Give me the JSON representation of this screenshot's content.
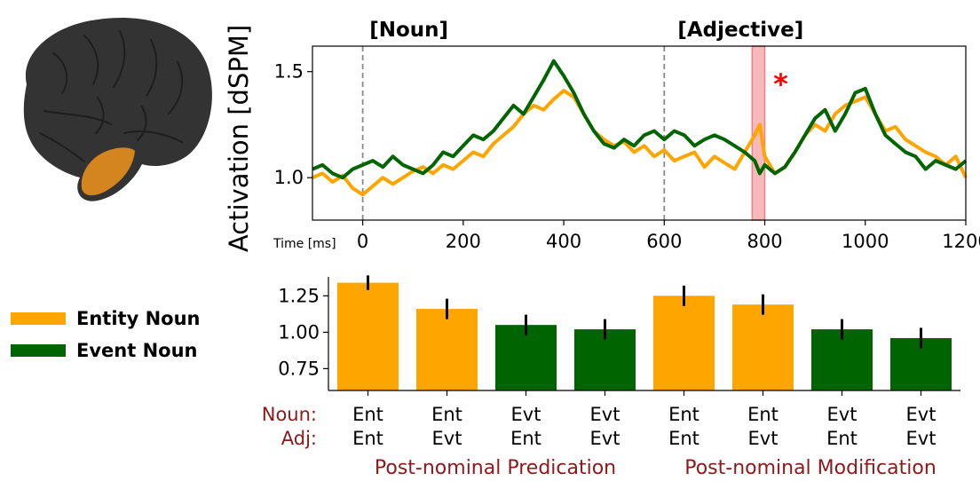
{
  "colors": {
    "entity": "#FFA500",
    "event": "#006400",
    "brain": "#333333",
    "region": "#D4851F",
    "highlight": "#F08080",
    "star": "#FF0000",
    "condition_text": "#8B1A1A"
  },
  "legend": [
    {
      "label": "Entity Noun",
      "color_key": "entity"
    },
    {
      "label": "Event Noun",
      "color_key": "event"
    }
  ],
  "brain_icon": "left-hemisphere-brain-with-temporal-region-highlighted",
  "chart_data": [
    {
      "type": "line",
      "ylabel": "Activation [dSPM]",
      "xlabel": "Time [ms]",
      "xlim": [
        -100,
        1200
      ],
      "ylim": [
        0.8,
        1.62
      ],
      "xticks": [
        0,
        200,
        400,
        600,
        800,
        1000,
        1200
      ],
      "yticks": [
        1.0,
        1.5
      ],
      "ytick_labels": [
        "1.0",
        "1.5"
      ],
      "grid": false,
      "onset_markers": [
        {
          "x": 0,
          "label": "[Noun]"
        },
        {
          "x": 600,
          "label": "[Adjective]"
        }
      ],
      "significant_window": {
        "x0": 775,
        "x1": 800,
        "marker": "*"
      },
      "series": [
        {
          "name": "Entity Noun",
          "color_key": "entity",
          "x": [
            -100,
            -80,
            -60,
            -40,
            -20,
            0,
            20,
            40,
            60,
            80,
            100,
            120,
            140,
            160,
            180,
            200,
            220,
            240,
            260,
            280,
            300,
            320,
            340,
            360,
            380,
            400,
            420,
            440,
            460,
            480,
            500,
            520,
            540,
            560,
            580,
            600,
            620,
            640,
            660,
            680,
            700,
            720,
            740,
            760,
            780,
            790,
            800,
            820,
            840,
            860,
            880,
            900,
            920,
            940,
            960,
            980,
            1000,
            1020,
            1040,
            1060,
            1080,
            1100,
            1120,
            1140,
            1160,
            1180,
            1200
          ],
          "y": [
            1.0,
            1.02,
            0.98,
            1.01,
            0.95,
            0.92,
            0.96,
            1.0,
            0.97,
            1.0,
            1.03,
            1.05,
            1.02,
            1.06,
            1.04,
            1.08,
            1.12,
            1.1,
            1.16,
            1.2,
            1.24,
            1.3,
            1.34,
            1.32,
            1.37,
            1.41,
            1.38,
            1.3,
            1.22,
            1.18,
            1.15,
            1.17,
            1.12,
            1.15,
            1.1,
            1.13,
            1.08,
            1.1,
            1.12,
            1.05,
            1.1,
            1.07,
            1.04,
            1.12,
            1.2,
            1.25,
            1.1,
            1.02,
            1.05,
            1.12,
            1.2,
            1.25,
            1.22,
            1.3,
            1.34,
            1.36,
            1.38,
            1.3,
            1.22,
            1.24,
            1.18,
            1.15,
            1.12,
            1.1,
            1.06,
            1.1,
            1.0
          ]
        },
        {
          "name": "Event Noun",
          "color_key": "event",
          "x": [
            -100,
            -80,
            -60,
            -40,
            -20,
            0,
            20,
            40,
            60,
            80,
            100,
            120,
            140,
            160,
            180,
            200,
            220,
            240,
            260,
            280,
            300,
            320,
            340,
            360,
            380,
            400,
            420,
            440,
            460,
            480,
            500,
            520,
            540,
            560,
            580,
            600,
            620,
            640,
            660,
            680,
            700,
            720,
            740,
            760,
            780,
            790,
            800,
            820,
            840,
            860,
            880,
            900,
            920,
            940,
            960,
            980,
            1000,
            1020,
            1040,
            1060,
            1080,
            1100,
            1120,
            1140,
            1160,
            1180,
            1200
          ],
          "y": [
            1.04,
            1.06,
            1.02,
            1.0,
            1.04,
            1.06,
            1.08,
            1.05,
            1.1,
            1.06,
            1.04,
            1.02,
            1.06,
            1.12,
            1.1,
            1.15,
            1.2,
            1.18,
            1.22,
            1.28,
            1.34,
            1.3,
            1.38,
            1.46,
            1.55,
            1.48,
            1.4,
            1.3,
            1.22,
            1.16,
            1.14,
            1.18,
            1.15,
            1.2,
            1.22,
            1.18,
            1.22,
            1.2,
            1.15,
            1.18,
            1.2,
            1.18,
            1.15,
            1.12,
            1.08,
            1.02,
            1.06,
            1.02,
            1.05,
            1.12,
            1.2,
            1.28,
            1.32,
            1.22,
            1.3,
            1.4,
            1.42,
            1.3,
            1.2,
            1.16,
            1.12,
            1.1,
            1.04,
            1.08,
            1.06,
            1.04,
            1.08
          ]
        }
      ]
    },
    {
      "type": "bar",
      "ylim": [
        0.6,
        1.38
      ],
      "yticks": [
        0.75,
        1.0,
        1.25
      ],
      "ytick_labels": [
        "0.75",
        "1.00",
        "1.25"
      ],
      "grid": false,
      "row_labels": {
        "noun": "Noun:",
        "adj": "Adj:"
      },
      "group_labels": [
        "Post-nominal Predication",
        "Post-nominal Modification"
      ],
      "bars": [
        {
          "noun": "Ent",
          "adj": "Ent",
          "value": 1.34,
          "err": 0.05,
          "color_key": "entity"
        },
        {
          "noun": "Ent",
          "adj": "Evt",
          "value": 1.16,
          "err": 0.07,
          "color_key": "entity"
        },
        {
          "noun": "Evt",
          "adj": "Ent",
          "value": 1.05,
          "err": 0.07,
          "color_key": "event"
        },
        {
          "noun": "Evt",
          "adj": "Evt",
          "value": 1.02,
          "err": 0.07,
          "color_key": "event"
        },
        {
          "noun": "Ent",
          "adj": "Ent",
          "value": 1.25,
          "err": 0.07,
          "color_key": "entity"
        },
        {
          "noun": "Ent",
          "adj": "Evt",
          "value": 1.19,
          "err": 0.07,
          "color_key": "entity"
        },
        {
          "noun": "Evt",
          "adj": "Ent",
          "value": 1.02,
          "err": 0.07,
          "color_key": "event"
        },
        {
          "noun": "Evt",
          "adj": "Evt",
          "value": 0.96,
          "err": 0.07,
          "color_key": "event"
        }
      ]
    }
  ]
}
